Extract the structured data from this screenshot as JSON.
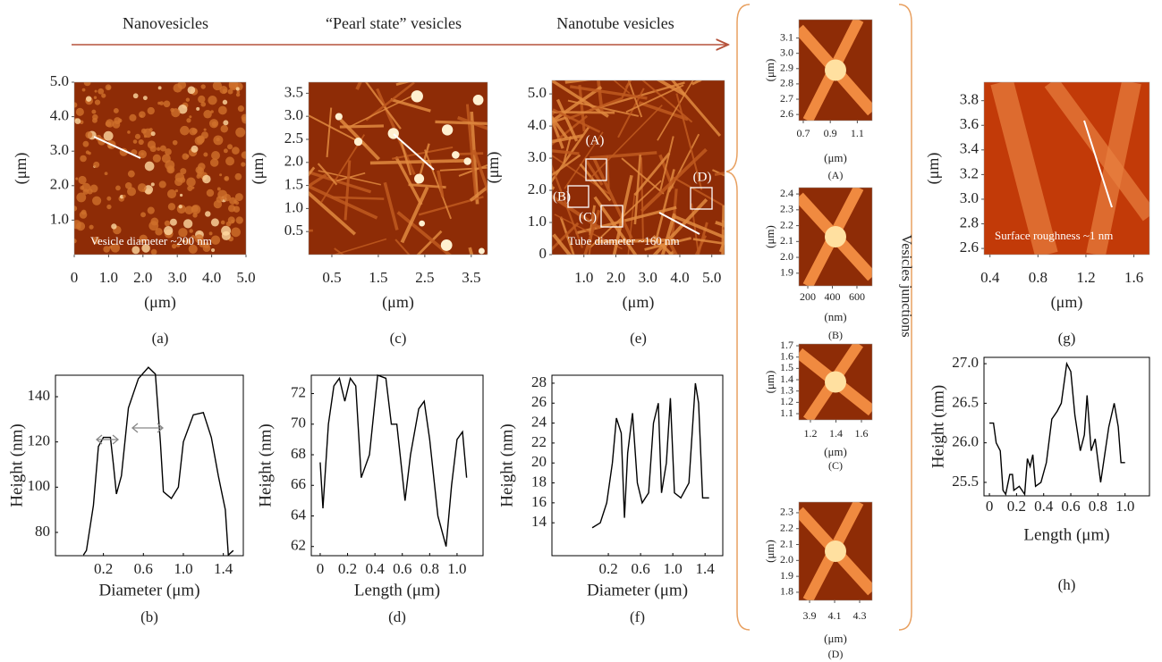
{
  "header": {
    "steps": [
      "Nanovesicles",
      "“Pearl state” vesicles",
      "Nanotube vesicles"
    ],
    "side_label": "Vesicles junctions"
  },
  "image_panels": [
    {
      "caption": "(a)",
      "xlabel": "(μm)",
      "ylabel": "(μm)",
      "annotation": "Vesicle diameter ~200 nm",
      "xlim": [
        0,
        5
      ],
      "ylim": [
        0,
        5
      ],
      "xticks": [
        0,
        {
          "value": 1,
          "label": "1.0"
        },
        {
          "value": 2,
          "label": "2.0"
        },
        {
          "value": 3,
          "label": "3.0"
        },
        {
          "value": 4,
          "label": "4.0"
        },
        {
          "value": 5,
          "label": "5.0"
        }
      ],
      "yticks": [
        {
          "value": 1,
          "label": "1.0"
        },
        {
          "value": 2,
          "label": "2.0"
        },
        {
          "value": 3,
          "label": "3.0"
        },
        {
          "value": 4,
          "label": "4.0"
        },
        {
          "value": 5,
          "label": "5.0"
        }
      ]
    },
    {
      "caption": "(c)",
      "xlabel": "(μm)",
      "ylabel": "(μm)",
      "xlim": [
        0,
        3.85
      ],
      "ylim": [
        0,
        3.74
      ],
      "xticks": [
        0.5,
        1.5,
        2.5,
        3.5
      ],
      "yticks": [
        0.5,
        {
          "value": 1,
          "label": "1.0"
        },
        1.5,
        {
          "value": 2,
          "label": "2.0"
        },
        2.5,
        {
          "value": 3,
          "label": "3.0"
        },
        3.5
      ]
    },
    {
      "caption": "(e)",
      "xlabel": "(μm)",
      "ylabel": "(μm)",
      "annotation": "Tube diameter ~160 nm",
      "box_labels": [
        "(A)",
        "(B)",
        "(C)",
        "(D)"
      ],
      "xlim": [
        0,
        5.4
      ],
      "ylim": [
        0,
        5.42
      ],
      "xticks": [
        {
          "value": 1,
          "label": "1.0"
        },
        {
          "value": 2,
          "label": "2.0"
        },
        {
          "value": 3,
          "label": "3.0"
        },
        {
          "value": 4,
          "label": "4.0"
        },
        {
          "value": 5,
          "label": "5.0"
        }
      ],
      "yticks": [
        0,
        {
          "value": 1,
          "label": "1.0"
        },
        {
          "value": 2,
          "label": "2.0"
        },
        {
          "value": 3,
          "label": "3.0"
        },
        {
          "value": 4,
          "label": "4.0"
        },
        {
          "value": 5,
          "label": "5.0"
        }
      ]
    },
    {
      "caption": "(g)",
      "xlabel": "(μm)",
      "ylabel": "(μm)",
      "annotation": "Surface roughness ~1 nm",
      "xlim": [
        0.35,
        1.73
      ],
      "ylim": [
        2.55,
        3.95
      ],
      "xticks": [
        0.4,
        0.8,
        1.2,
        1.6
      ],
      "yticks": [
        2.6,
        2.8,
        {
          "value": 3,
          "label": "3.0"
        },
        3.2,
        3.4,
        3.6,
        3.8
      ]
    },
    {
      "caption": "(A)",
      "xlabel": "(μm)",
      "ylabel": "(μm)",
      "xlim": [
        0.667,
        1.21
      ],
      "ylim": [
        2.56,
        3.22
      ],
      "xticks": [
        0.7,
        0.9,
        1.1
      ],
      "yticks": [
        2.6,
        2.7,
        2.8,
        2.9,
        {
          "value": 3,
          "label": "3.0"
        },
        3.1
      ]
    },
    {
      "caption": "(B)",
      "xlabel": "(nm)",
      "ylabel": "(μm)",
      "xlim": [
        127,
        724
      ],
      "ylim": [
        1.82,
        2.44
      ],
      "xticks": [
        200,
        400,
        600
      ],
      "yticks": [
        1.9,
        {
          "value": 2,
          "label": "2.0"
        },
        2.1,
        2.2,
        2.3,
        2.4
      ]
    },
    {
      "caption": "(C)",
      "xlabel": "(μm)",
      "ylabel": "(μm)",
      "xlim": [
        1.109,
        1.684
      ],
      "ylim": [
        1.045,
        1.716
      ],
      "xticks": [
        1.2,
        1.4,
        1.6
      ],
      "yticks": [
        1.1,
        1.2,
        1.3,
        1.4,
        1.5,
        1.6,
        1.7
      ]
    },
    {
      "caption": "(D)",
      "xlabel": "(μm)",
      "ylabel": "(μm)",
      "xlim": [
        3.814,
        4.4
      ],
      "ylim": [
        1.749,
        2.367
      ],
      "xticks": [
        3.9,
        4.1,
        4.3
      ],
      "yticks": [
        1.8,
        1.9,
        {
          "value": 2,
          "label": "2.0"
        },
        2.1,
        2.2,
        2.3
      ]
    }
  ],
  "chart_data": [
    {
      "type": "line",
      "caption": "(b)",
      "xlabel": "Diameter (μm)",
      "ylabel": "Height (nm)",
      "color": "#000000",
      "xlim": [
        -0.28,
        1.6
      ],
      "ylim": [
        69.7,
        149.5
      ],
      "xticks": [
        0.2,
        0.6,
        {
          "value": 1,
          "label": "1.0"
        },
        1.4
      ],
      "yticks": [
        80,
        100,
        120,
        140
      ],
      "x": [
        0,
        0.03,
        0.1,
        0.15,
        0.2,
        0.27,
        0.3,
        0.33,
        0.38,
        0.45,
        0.55,
        0.65,
        0.72,
        0.77,
        0.8,
        0.88,
        0.95,
        1.0,
        1.1,
        1.2,
        1.28,
        1.35,
        1.42,
        1.45,
        1.5
      ],
      "values": [
        70,
        72,
        92,
        118,
        122,
        122,
        110,
        97,
        105,
        135,
        148,
        153,
        150,
        120,
        98,
        95,
        100,
        120,
        132,
        133,
        122,
        105,
        90,
        70,
        72
      ]
    },
    {
      "type": "line",
      "caption": "(d)",
      "xlabel": "Length (μm)",
      "ylabel": "Height (nm)",
      "color": "#000000",
      "xlim": [
        -0.065,
        1.19
      ],
      "ylim": [
        61.4,
        73.2
      ],
      "xticks": [
        0,
        0.2,
        0.4,
        0.6,
        0.8,
        {
          "value": 1,
          "label": "1.0"
        }
      ],
      "yticks": [
        62,
        64,
        66,
        68,
        70,
        72
      ],
      "x": [
        0,
        0.02,
        0.06,
        0.1,
        0.14,
        0.18,
        0.22,
        0.26,
        0.3,
        0.36,
        0.42,
        0.48,
        0.52,
        0.56,
        0.62,
        0.66,
        0.72,
        0.76,
        0.8,
        0.86,
        0.92,
        0.96,
        1.0,
        1.04,
        1.07
      ],
      "values": [
        67.5,
        64.5,
        70,
        72.5,
        73,
        71.5,
        73,
        72.5,
        66.5,
        68,
        73.2,
        73,
        70,
        70,
        65,
        68,
        71,
        71.5,
        69,
        64,
        62,
        66,
        69,
        69.5,
        66.5
      ]
    },
    {
      "type": "line",
      "caption": "(f)",
      "xlabel": "Diameter (μm)",
      "ylabel": "Height (nm)",
      "color": "#000000",
      "xlim": [
        -0.5,
        1.62
      ],
      "ylim": [
        10.7,
        28.8
      ],
      "xticks": [
        0.2,
        0.6,
        {
          "value": 1,
          "label": "1.0"
        },
        1.4
      ],
      "yticks": [
        14,
        16,
        18,
        20,
        22,
        24,
        26,
        28
      ],
      "x": [
        0,
        0.1,
        0.18,
        0.25,
        0.3,
        0.36,
        0.4,
        0.44,
        0.5,
        0.56,
        0.62,
        0.7,
        0.76,
        0.82,
        0.86,
        0.92,
        0.97,
        1.02,
        1.1,
        1.2,
        1.28,
        1.32,
        1.37,
        1.45
      ],
      "values": [
        13.5,
        14,
        16,
        20,
        24.5,
        23,
        14.5,
        21,
        25,
        18,
        16,
        17,
        24,
        26,
        17,
        20,
        26.5,
        17,
        16.5,
        18,
        28,
        26,
        16.5,
        16.5
      ]
    },
    {
      "type": "line",
      "caption": "(h)",
      "xlabel": "Length (μm)",
      "ylabel": "Height (nm)",
      "color": "#000000",
      "xlim": [
        -0.04,
        1.18
      ],
      "ylim": [
        25.33,
        27.08
      ],
      "xticks": [
        0,
        0.2,
        0.4,
        0.6,
        0.8,
        {
          "value": 1,
          "label": "1.0"
        }
      ],
      "yticks": [
        25.5,
        {
          "value": 26,
          "label": "26.0"
        },
        26.5,
        {
          "value": 27,
          "label": "27.0"
        }
      ],
      "x": [
        0,
        0.03,
        0.05,
        0.08,
        0.1,
        0.12,
        0.15,
        0.17,
        0.18,
        0.22,
        0.26,
        0.28,
        0.3,
        0.32,
        0.34,
        0.38,
        0.42,
        0.46,
        0.5,
        0.53,
        0.57,
        0.6,
        0.63,
        0.67,
        0.7,
        0.72,
        0.75,
        0.78,
        0.82,
        0.88,
        0.92,
        0.95,
        0.97,
        1.0
      ],
      "values": [
        26.25,
        26.25,
        26,
        25.9,
        25.4,
        25.35,
        25.6,
        25.6,
        25.4,
        25.45,
        25.35,
        25.8,
        25.7,
        25.85,
        25.45,
        25.5,
        25.75,
        26.3,
        26.4,
        26.5,
        27,
        26.9,
        26.35,
        25.9,
        26.1,
        26.6,
        25.9,
        26.05,
        25.5,
        26.2,
        26.5,
        26.2,
        25.75,
        25.75
      ]
    }
  ]
}
